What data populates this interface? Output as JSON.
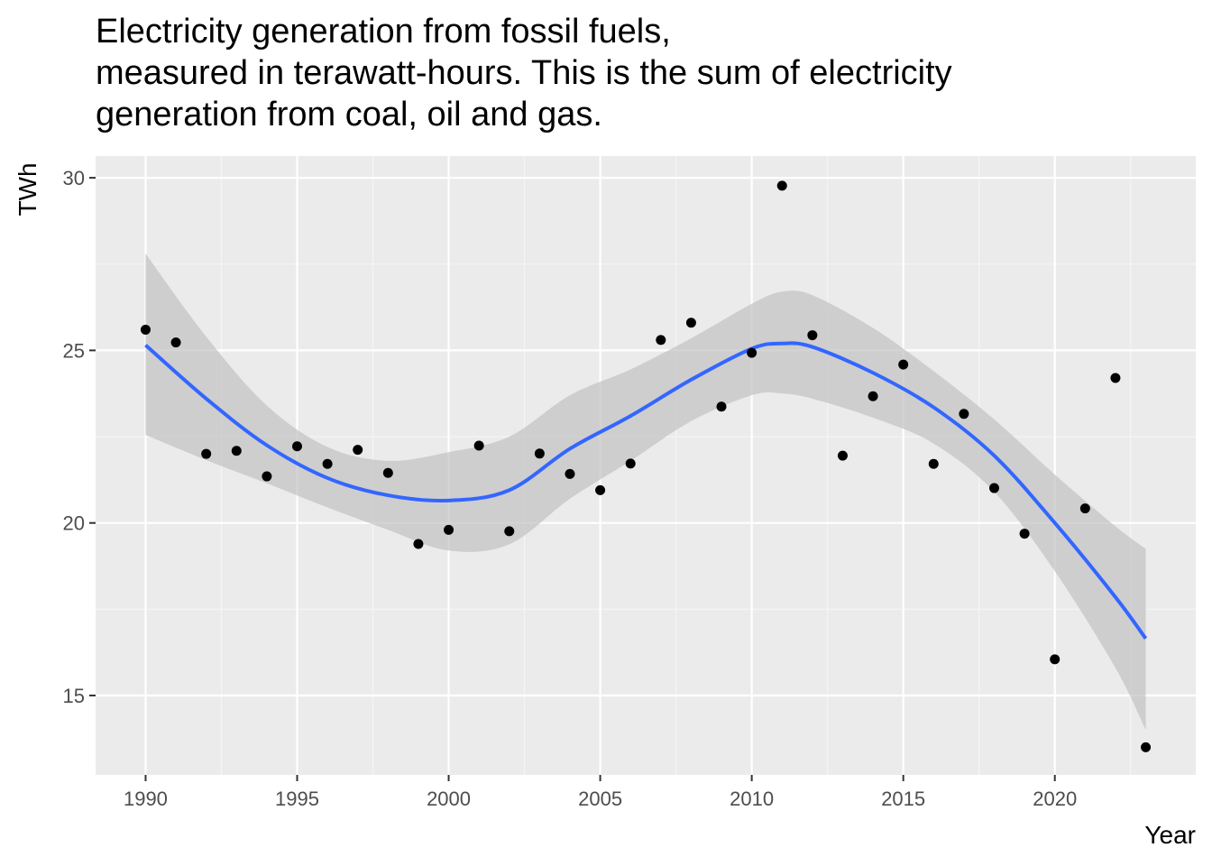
{
  "chart_data": {
    "type": "scatter",
    "title": [
      "Electricity generation from fossil fuels,",
      "measured in terawatt-hours. This is the sum of electricity",
      "generation from coal, oil and gas."
    ],
    "xlabel": "Year",
    "ylabel": "TWh",
    "xlim": [
      1988.35,
      2024.65
    ],
    "ylim": [
      12.7,
      30.63
    ],
    "x_ticks": [
      1990,
      1995,
      2000,
      2005,
      2010,
      2015,
      2020
    ],
    "x_tick_labels": [
      "1990",
      "1995",
      "2000",
      "2005",
      "2010",
      "2015",
      "2020"
    ],
    "y_ticks": [
      15,
      20,
      25,
      30
    ],
    "y_tick_labels": [
      "15",
      "20",
      "25",
      "30"
    ],
    "grid": true,
    "colors": {
      "panel_background": "#ebebeb",
      "grid_major": "#ffffff",
      "grid_minor": "#f5f5f5",
      "points": "#000000",
      "smooth_line": "#3366ff",
      "confidence_band": "#bfbfbf",
      "tick_label": "#4d4d4d",
      "tick_mark": "#333333"
    },
    "series": [
      {
        "x": [
          1990,
          1991,
          1992,
          1993,
          1994,
          1995,
          1996,
          1997,
          1998,
          1999,
          2000,
          2001,
          2002,
          2003,
          2004,
          2005,
          2006,
          2007,
          2008,
          2009,
          2010,
          2011,
          2012,
          2013,
          2014,
          2015,
          2016,
          2017,
          2018,
          2019,
          2020,
          2021,
          2022,
          2023
        ],
        "y": [
          25.6,
          25.23,
          22.0,
          22.09,
          21.35,
          22.22,
          21.71,
          22.12,
          21.45,
          19.39,
          19.8,
          22.24,
          19.76,
          22.01,
          21.42,
          20.95,
          21.72,
          25.3,
          25.8,
          23.37,
          24.93,
          29.77,
          25.44,
          21.95,
          23.67,
          24.59,
          21.71,
          23.16,
          21.01,
          19.69,
          16.05,
          20.42,
          24.2,
          13.5
        ]
      }
    ],
    "smooth": {
      "x": [
        1990,
        1992,
        1994,
        1996,
        1998,
        2000,
        2002,
        2004,
        2006,
        2008,
        2010,
        2011,
        2012,
        2014,
        2016,
        2018,
        2020,
        2022,
        2023
      ],
      "y": [
        25.15,
        23.6,
        22.25,
        21.3,
        20.8,
        20.65,
        20.95,
        22.15,
        23.1,
        24.15,
        25.05,
        25.2,
        25.1,
        24.35,
        23.35,
        21.95,
        20.0,
        17.85,
        16.65
      ],
      "lower": [
        22.55,
        21.82,
        21.15,
        20.45,
        19.8,
        19.2,
        19.38,
        20.7,
        21.8,
        22.95,
        23.7,
        23.75,
        23.6,
        23.05,
        22.3,
        20.9,
        18.6,
        15.8,
        14.0
      ],
      "upper": [
        27.8,
        25.4,
        23.4,
        22.2,
        21.8,
        22.05,
        22.5,
        23.7,
        24.45,
        25.35,
        26.35,
        26.7,
        26.6,
        25.65,
        24.4,
        23.0,
        21.4,
        19.9,
        19.25
      ]
    }
  }
}
